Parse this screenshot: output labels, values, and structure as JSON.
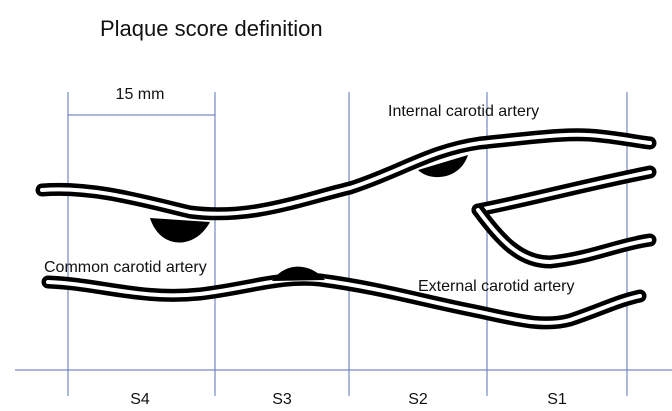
{
  "title": "Plaque score definition",
  "scale_label": "15 mm",
  "vessels": {
    "internal": "Internal carotid artery",
    "common": "Common carotid artery",
    "external": "External carotid artery"
  },
  "segments": [
    "S4",
    "S3",
    "S2",
    "S1"
  ]
}
